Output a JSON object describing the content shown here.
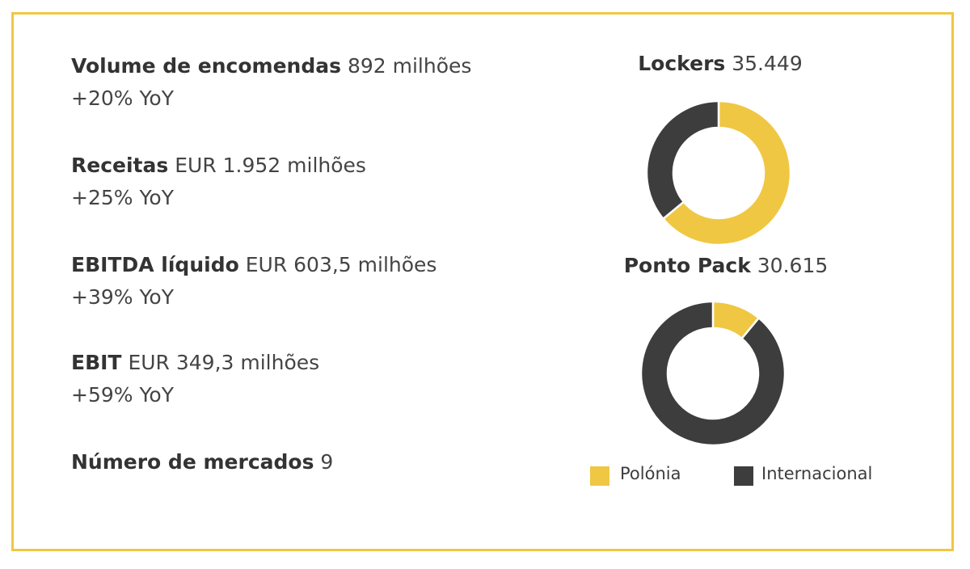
{
  "metrics": [
    {
      "label": "Volume de encomendas",
      "value": "892 milhões",
      "growth": "+20% YoY"
    },
    {
      "label": "Receitas",
      "value": "EUR 1.952 milhões",
      "growth": "+25% YoY"
    },
    {
      "label": "EBITDA líquido",
      "value": "EUR 603,5 milhões",
      "growth": "+39% YoY"
    },
    {
      "label": "EBIT",
      "value": "EUR 349,3 milhões",
      "growth": "+59% YoY"
    },
    {
      "label": "Número de mercados",
      "value": "9",
      "growth": ""
    }
  ],
  "colors": {
    "border": "#f0c743",
    "polonia": "#f0c743",
    "internacional": "#3d3d3d"
  },
  "chart_data": [
    {
      "type": "pie",
      "title": "Lockers",
      "title_value": "35.449",
      "labels": [
        "Polónia",
        "Internacional"
      ],
      "values": [
        64,
        36
      ],
      "donut": true
    },
    {
      "type": "pie",
      "title": "Ponto Pack",
      "title_value": "30.615",
      "labels": [
        "Polónia",
        "Internacional"
      ],
      "values": [
        11,
        89
      ],
      "donut": true
    }
  ],
  "legend": {
    "items": [
      {
        "label": "Polónia",
        "color": "#f0c743"
      },
      {
        "label": "Internacional",
        "color": "#3d3d3d"
      }
    ]
  }
}
